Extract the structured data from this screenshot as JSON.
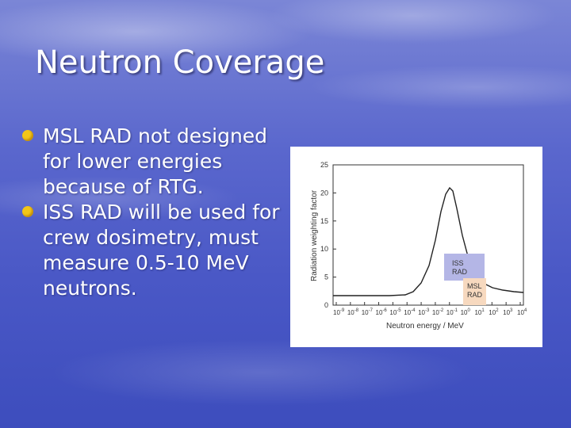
{
  "slide": {
    "title": "Neutron Coverage",
    "bullets": [
      "MSL RAD not designed for lower energies because of RTG.",
      "ISS RAD will be used for crew dosimetry, must measure 0.5-10 MeV neutrons."
    ],
    "colors": {
      "bullet_dot": "#f3c618",
      "title_text": "#ffffff"
    }
  },
  "figure": {
    "ylabel": "Radiation weighting factor",
    "xlabel": "Neutron energy / MeV",
    "yticks": [
      "0",
      "5",
      "10",
      "15",
      "20",
      "25"
    ],
    "xticks": [
      {
        "base": "10",
        "exp": "-9"
      },
      {
        "base": "10",
        "exp": "-8"
      },
      {
        "base": "10",
        "exp": "-7"
      },
      {
        "base": "10",
        "exp": "-6"
      },
      {
        "base": "10",
        "exp": "-5"
      },
      {
        "base": "10",
        "exp": "-4"
      },
      {
        "base": "10",
        "exp": "-3"
      },
      {
        "base": "10",
        "exp": "-2"
      },
      {
        "base": "10",
        "exp": "-1"
      },
      {
        "base": "10",
        "exp": "0"
      },
      {
        "base": "10",
        "exp": "1"
      },
      {
        "base": "10",
        "exp": "2"
      },
      {
        "base": "10",
        "exp": "3"
      },
      {
        "base": "10",
        "exp": "4"
      }
    ],
    "boxes": [
      {
        "label_line1": "ISS",
        "label_line2": "RAD",
        "color": "#b4b6e6"
      },
      {
        "label_line1": "MSL",
        "label_line2": "RAD",
        "color": "#f7d9bf"
      }
    ]
  }
}
